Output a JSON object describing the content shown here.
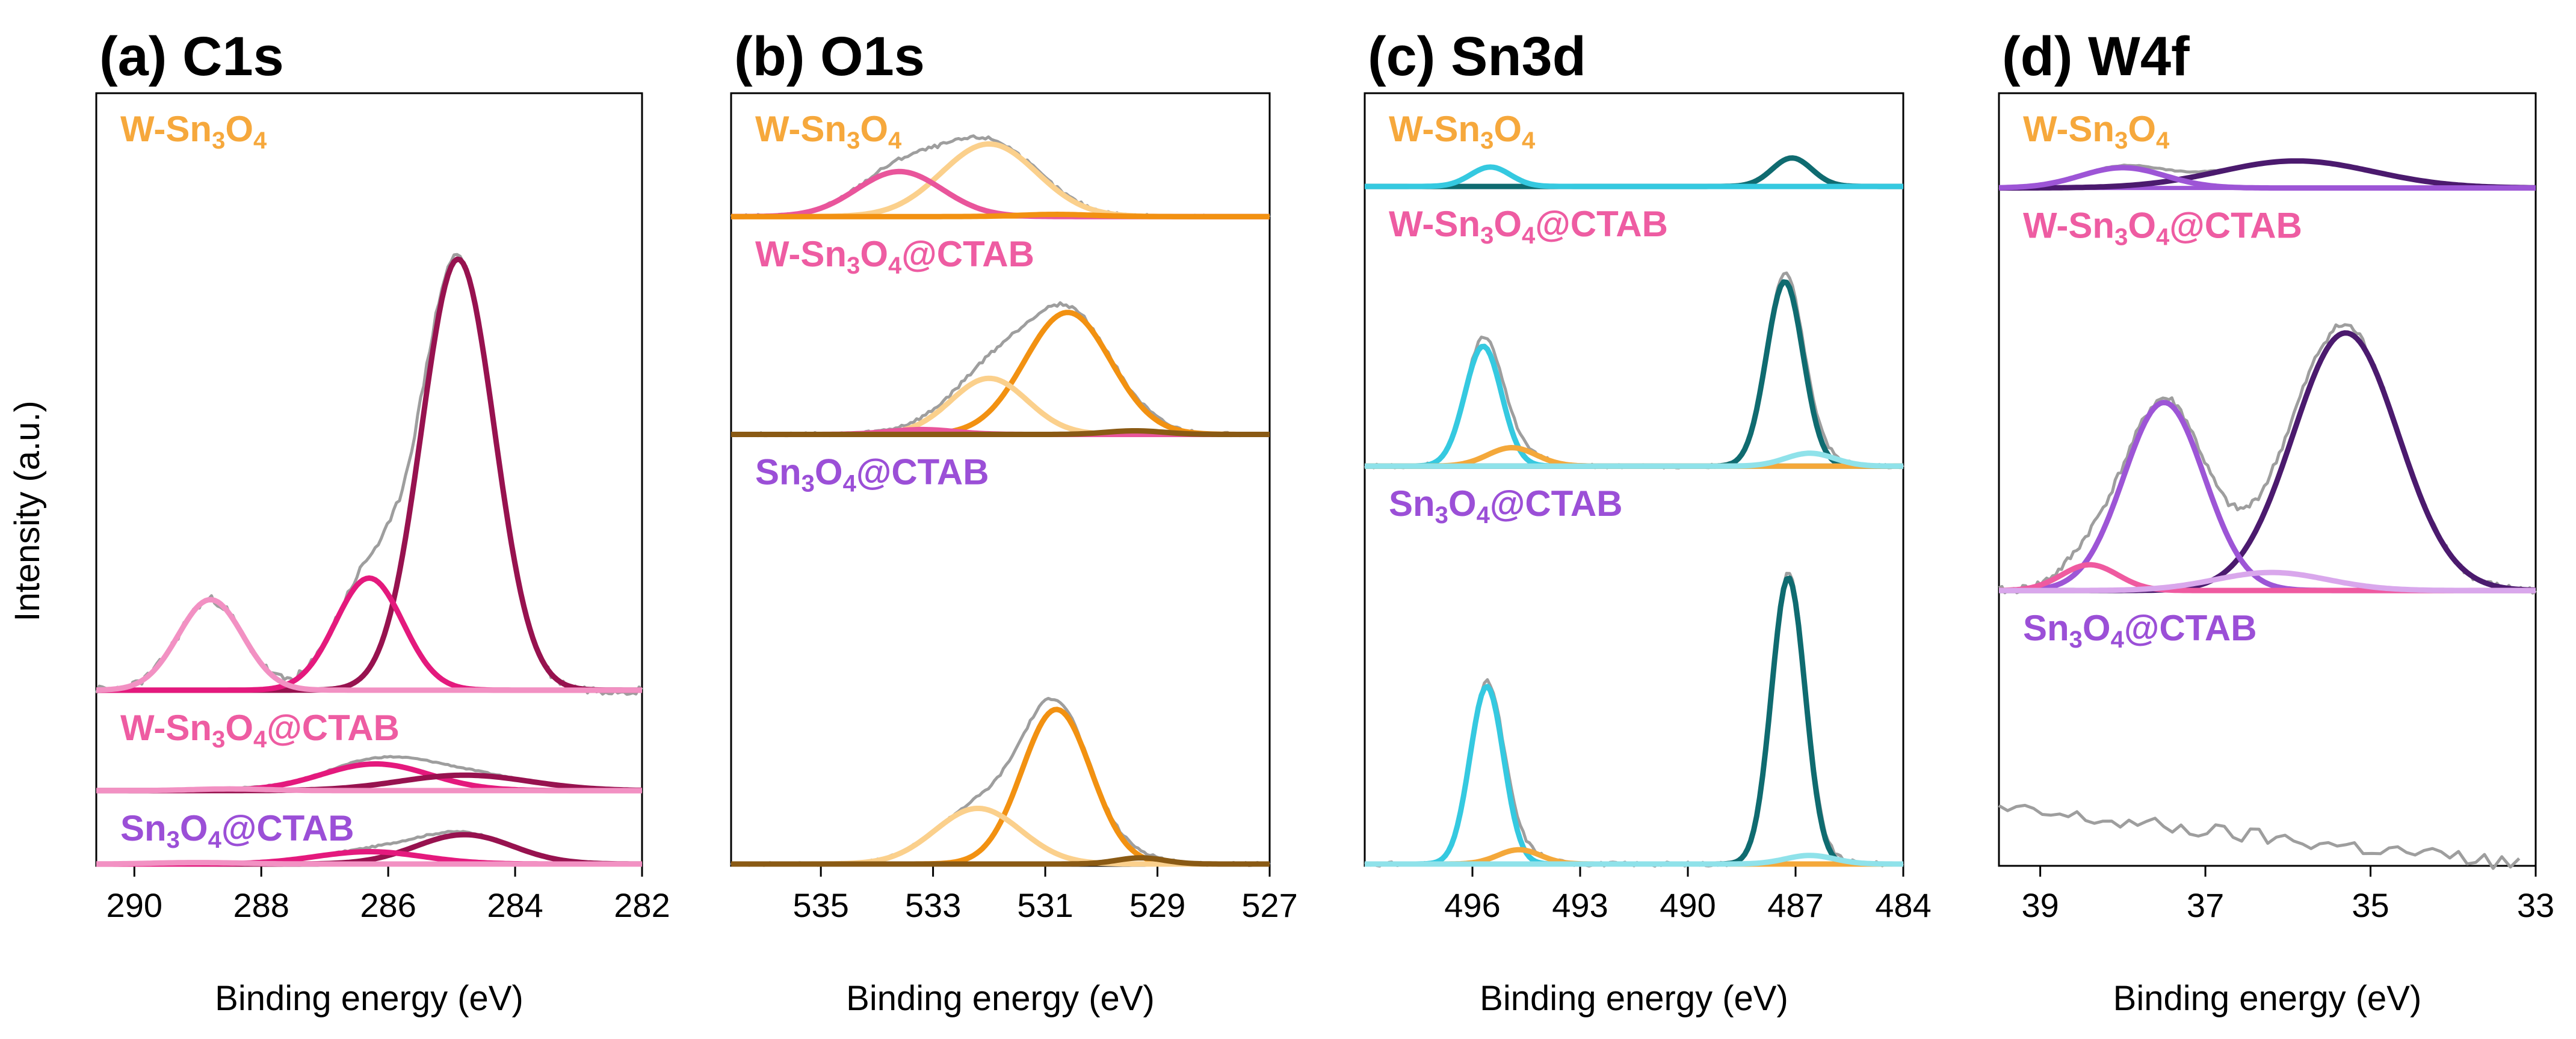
{
  "y_axis_label": "Intensity (a.u.)",
  "colors": {
    "envelope": "#9e9e9e",
    "c_magenta": "#e4197d",
    "c_pink_light": "#f291c3",
    "c_wine": "#97124f",
    "o_orange": "#f29111",
    "o_peach": "#fbd08c",
    "o_pink": "#e9559b",
    "o_brown": "#8a5a14",
    "sn_cyan": "#35c9e0",
    "sn_teal": "#0f6b70",
    "sn_aqua_light": "#8fe2ea",
    "sn_orange": "#f4a83a",
    "w_purple": "#9d55d6",
    "w_dark": "#4b1a6e",
    "w_pink": "#ef5aa0",
    "w_lavender": "#d9a7ec",
    "label_w_sn3o4": "#f6a83c",
    "label_ctab": "#ee5ca2",
    "label_sn3o4_ctab": "#9b4fd7"
  },
  "chart_data": [
    {
      "type": "line",
      "title": "(a) C1s",
      "xlabel": "Binding energy (eV)",
      "ylabel": "Intensity (a.u.)",
      "xlim": [
        290.6,
        282
      ],
      "x_ticks": [
        "290",
        "288",
        "286",
        "284",
        "282"
      ],
      "x_tick_values": [
        290,
        288,
        286,
        284,
        282
      ],
      "stack_divisions": [
        0.0,
        0.095,
        0.225,
        1.0
      ],
      "spectra": [
        {
          "sample": "W-Sn3O4",
          "label_parts": [
            [
              "W-Sn",
              ""
            ],
            [
              "3",
              "sub"
            ],
            [
              "O",
              ""
            ],
            [
              "4",
              "sub"
            ]
          ],
          "label_color": "label_w_sn3o4",
          "band": [
            0.225,
            1.0
          ],
          "peak_scale": 0.72,
          "envelope_noise": 0.02,
          "components": [
            {
              "center": 284.9,
              "amplitude": 1.0,
              "fwhm": 1.35,
              "color": "c_wine"
            },
            {
              "center": 286.3,
              "amplitude": 0.26,
              "fwhm": 1.25,
              "color": "c_magenta"
            },
            {
              "center": 288.8,
              "amplitude": 0.21,
              "fwhm": 1.2,
              "color": "c_pink_light"
            }
          ],
          "baselines": [
            "c_magenta"
          ]
        },
        {
          "sample": "W-Sn3O4@CTAB",
          "label_parts": [
            [
              "W-Sn",
              ""
            ],
            [
              "3",
              "sub"
            ],
            [
              "O",
              ""
            ],
            [
              "4",
              "sub"
            ],
            [
              "@CTAB",
              ""
            ]
          ],
          "label_color": "label_ctab",
          "band": [
            0.095,
            0.225
          ],
          "peak_scale": 0.28,
          "envelope_noise": 0.04,
          "components": [
            {
              "center": 286.2,
              "amplitude": 0.95,
              "fwhm": 2.0,
              "color": "c_magenta"
            },
            {
              "center": 284.8,
              "amplitude": 0.55,
              "fwhm": 2.4,
              "color": "c_wine"
            },
            {
              "center": 288.5,
              "amplitude": 0.06,
              "fwhm": 1.4,
              "color": "c_pink_light"
            }
          ],
          "baselines": [
            "c_pink_light",
            "c_magenta"
          ]
        },
        {
          "sample": "Sn3O4@CTAB",
          "label_parts": [
            [
              "Sn",
              ""
            ],
            [
              "3",
              "sub"
            ],
            [
              "O",
              ""
            ],
            [
              "4",
              "sub"
            ],
            [
              "@CTAB",
              ""
            ]
          ],
          "label_color": "label_sn3o4_ctab",
          "band": [
            0.0,
            0.095
          ],
          "peak_scale": 0.4,
          "envelope_noise": 0.05,
          "components": [
            {
              "center": 284.8,
              "amplitude": 1.0,
              "fwhm": 1.8,
              "color": "c_wine"
            },
            {
              "center": 286.3,
              "amplitude": 0.42,
              "fwhm": 2.0,
              "color": "c_magenta"
            },
            {
              "center": 289.0,
              "amplitude": 0.05,
              "fwhm": 1.6,
              "color": "c_pink_light"
            }
          ],
          "baselines": [
            "c_pink_light"
          ]
        }
      ]
    },
    {
      "type": "line",
      "title": "(b) O1s",
      "xlabel": "Binding energy (eV)",
      "ylabel": "Intensity (a.u.)",
      "xlim": [
        536.6,
        527
      ],
      "x_ticks": [
        "535",
        "533",
        "531",
        "529",
        "527"
      ],
      "x_tick_values": [
        535,
        533,
        531,
        529,
        527
      ],
      "stack_divisions": [
        0.0,
        0.556,
        0.838,
        1.0
      ],
      "spectra": [
        {
          "sample": "W-Sn3O4",
          "label_parts": [
            [
              "W-Sn",
              ""
            ],
            [
              "3",
              "sub"
            ],
            [
              "O",
              ""
            ],
            [
              "4",
              "sub"
            ]
          ],
          "label_color": "label_w_sn3o4",
          "band": [
            0.838,
            1.0
          ],
          "peak_scale": 0.58,
          "envelope_noise": 0.05,
          "components": [
            {
              "center": 532.0,
              "amplitude": 1.0,
              "fwhm": 2.0,
              "color": "o_peach"
            },
            {
              "center": 533.6,
              "amplitude": 0.62,
              "fwhm": 1.8,
              "color": "o_pink"
            },
            {
              "center": 530.8,
              "amplitude": 0.03,
              "fwhm": 1.5,
              "color": "o_orange"
            }
          ],
          "baselines": [
            "o_orange"
          ]
        },
        {
          "sample": "W-Sn3O4@CTAB",
          "label_parts": [
            [
              "W-Sn",
              ""
            ],
            [
              "3",
              "sub"
            ],
            [
              "O",
              ""
            ],
            [
              "4",
              "sub"
            ],
            [
              "@CTAB",
              ""
            ]
          ],
          "label_color": "label_ctab",
          "band": [
            0.556,
            0.838
          ],
          "peak_scale": 0.56,
          "envelope_noise": 0.03,
          "components": [
            {
              "center": 530.6,
              "amplitude": 1.0,
              "fwhm": 1.8,
              "color": "o_orange"
            },
            {
              "center": 532.0,
              "amplitude": 0.46,
              "fwhm": 1.6,
              "color": "o_peach"
            },
            {
              "center": 533.2,
              "amplitude": 0.04,
              "fwhm": 1.4,
              "color": "o_pink"
            },
            {
              "center": 529.4,
              "amplitude": 0.03,
              "fwhm": 1.2,
              "color": "o_brown"
            }
          ],
          "baselines": [
            "o_pink"
          ]
        },
        {
          "sample": "Sn3O4@CTAB",
          "label_parts": [
            [
              "Sn",
              ""
            ],
            [
              "3",
              "sub"
            ],
            [
              "O",
              ""
            ],
            [
              "4",
              "sub"
            ],
            [
              "@CTAB",
              ""
            ]
          ],
          "label_color": "label_sn3o4_ctab",
          "band": [
            0.0,
            0.556
          ],
          "peak_scale": 0.36,
          "envelope_noise": 0.02,
          "components": [
            {
              "center": 530.8,
              "amplitude": 1.0,
              "fwhm": 1.45,
              "color": "o_orange"
            },
            {
              "center": 532.2,
              "amplitude": 0.36,
              "fwhm": 1.8,
              "color": "o_peach"
            },
            {
              "center": 529.3,
              "amplitude": 0.04,
              "fwhm": 1.0,
              "color": "o_brown"
            }
          ],
          "baselines": [
            "o_peach",
            "o_brown"
          ]
        }
      ]
    },
    {
      "type": "line",
      "title": "(c) Sn3d",
      "xlabel": "Binding energy (eV)",
      "ylabel": "Intensity (a.u.)",
      "xlim": [
        499,
        484
      ],
      "x_ticks": [
        "496",
        "493",
        "490",
        "487",
        "484"
      ],
      "x_tick_values": [
        496,
        493,
        490,
        487,
        484
      ],
      "stack_divisions": [
        0.0,
        0.515,
        0.877,
        1.0
      ],
      "spectra": [
        {
          "sample": "W-Sn3O4",
          "label_parts": [
            [
              "W-Sn",
              ""
            ],
            [
              "3",
              "sub"
            ],
            [
              "O",
              ""
            ],
            [
              "4",
              "sub"
            ]
          ],
          "label_color": "label_w_sn3o4",
          "band": [
            0.877,
            1.0
          ],
          "peak_scale": 0.3,
          "envelope_noise": 0.05,
          "components": [
            {
              "center": 487.1,
              "amplitude": 1.0,
              "fwhm": 1.3,
              "color": "sn_teal"
            },
            {
              "center": 495.5,
              "amplitude": 0.68,
              "fwhm": 1.3,
              "color": "sn_cyan"
            }
          ],
          "baselines": [
            "sn_orange"
          ]
        },
        {
          "sample": "W-Sn3O4@CTAB",
          "label_parts": [
            [
              "W-Sn",
              ""
            ],
            [
              "3",
              "sub"
            ],
            [
              "O",
              ""
            ],
            [
              "4",
              "sub"
            ],
            [
              "@CTAB",
              ""
            ]
          ],
          "label_color": "label_ctab",
          "band": [
            0.515,
            0.877
          ],
          "peak_scale": 0.66,
          "envelope_noise": 0.02,
          "components": [
            {
              "center": 487.3,
              "amplitude": 1.0,
              "fwhm": 1.2,
              "color": "sn_teal"
            },
            {
              "center": 495.7,
              "amplitude": 0.65,
              "fwhm": 1.2,
              "color": "sn_cyan"
            },
            {
              "center": 494.9,
              "amplitude": 0.1,
              "fwhm": 1.6,
              "color": "sn_orange"
            },
            {
              "center": 486.6,
              "amplitude": 0.07,
              "fwhm": 1.6,
              "color": "sn_aqua_light"
            }
          ],
          "baselines": [
            "sn_orange"
          ]
        },
        {
          "sample": "Sn3O4@CTAB",
          "label_parts": [
            [
              "Sn",
              ""
            ],
            [
              "3",
              "sub"
            ],
            [
              "O",
              ""
            ],
            [
              "4",
              "sub"
            ],
            [
              "@CTAB",
              ""
            ]
          ],
          "label_color": "label_sn3o4_ctab",
          "band": [
            0.0,
            0.515
          ],
          "peak_scale": 0.72,
          "envelope_noise": 0.015,
          "components": [
            {
              "center": 487.2,
              "amplitude": 1.0,
              "fwhm": 1.1,
              "color": "sn_teal"
            },
            {
              "center": 495.6,
              "amplitude": 0.62,
              "fwhm": 1.1,
              "color": "sn_cyan"
            },
            {
              "center": 494.7,
              "amplitude": 0.05,
              "fwhm": 1.4,
              "color": "sn_orange"
            },
            {
              "center": 486.6,
              "amplitude": 0.03,
              "fwhm": 1.6,
              "color": "sn_aqua_light"
            }
          ],
          "baselines": [
            "sn_aqua_light"
          ]
        }
      ]
    },
    {
      "type": "line",
      "title": "(d) W4f",
      "xlabel": "Binding energy (eV)",
      "ylabel": "Intensity (a.u.)",
      "xlim": [
        39.5,
        33
      ],
      "x_ticks": [
        "39",
        "37",
        "35",
        "33"
      ],
      "x_tick_values": [
        39,
        37,
        35,
        33
      ],
      "stack_divisions": [
        0.0,
        0.354,
        0.875,
        1.0
      ],
      "spectra": [
        {
          "sample": "W-Sn3O4",
          "label_parts": [
            [
              "W-Sn",
              ""
            ],
            [
              "3",
              "sub"
            ],
            [
              "O",
              ""
            ],
            [
              "4",
              "sub"
            ]
          ],
          "label_color": "label_w_sn3o4",
          "band": [
            0.875,
            1.0
          ],
          "peak_scale": 0.28,
          "envelope_noise": 0.03,
          "components": [
            {
              "center": 35.9,
              "amplitude": 1.0,
              "fwhm": 2.2,
              "color": "w_dark"
            },
            {
              "center": 38.0,
              "amplitude": 0.75,
              "fwhm": 1.2,
              "color": "w_purple"
            }
          ],
          "baselines": [
            "w_purple"
          ]
        },
        {
          "sample": "W-Sn3O4@CTAB",
          "label_parts": [
            [
              "W-Sn",
              ""
            ],
            [
              "3",
              "sub"
            ],
            [
              "O",
              ""
            ],
            [
              "4",
              "sub"
            ],
            [
              "@CTAB",
              ""
            ]
          ],
          "label_color": "label_ctab",
          "band": [
            0.354,
            0.875
          ],
          "peak_scale": 0.64,
          "envelope_noise": 0.03,
          "components": [
            {
              "center": 35.3,
              "amplitude": 1.0,
              "fwhm": 1.5,
              "color": "w_dark"
            },
            {
              "center": 37.5,
              "amplitude": 0.73,
              "fwhm": 1.15,
              "color": "w_purple"
            },
            {
              "center": 38.4,
              "amplitude": 0.1,
              "fwhm": 0.8,
              "color": "w_pink"
            },
            {
              "center": 36.2,
              "amplitude": 0.07,
              "fwhm": 1.6,
              "color": "w_lavender"
            }
          ],
          "baselines": [
            "w_lavender"
          ]
        },
        {
          "sample": "Sn3O4@CTAB",
          "label_parts": [
            [
              "Sn",
              ""
            ],
            [
              "3",
              "sub"
            ],
            [
              "O",
              ""
            ],
            [
              "4",
              "sub"
            ],
            [
              "@CTAB",
              ""
            ]
          ],
          "label_color": "label_sn3o4_ctab",
          "band": [
            0.0,
            0.354
          ],
          "peak_scale": 0.0,
          "envelope_noise": 0.02,
          "envelope_override": {
            "x": [
              39.5,
              33.2
            ],
            "y": [
              0.2,
              0.0
            ]
          },
          "components": [],
          "baselines": []
        }
      ]
    }
  ]
}
